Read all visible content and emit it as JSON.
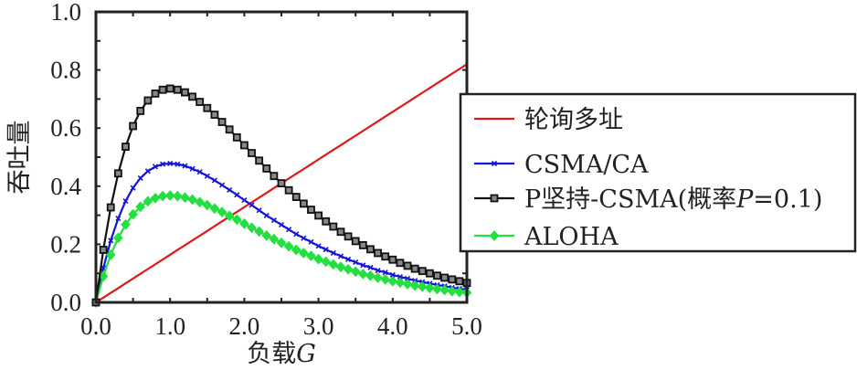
{
  "chart_data": {
    "type": "line",
    "title": "",
    "xlabel": "负载G",
    "xlabel_parts": {
      "text": "负载",
      "italic": "G"
    },
    "ylabel": "吞吐量",
    "xlim": [
      0,
      5
    ],
    "ylim": [
      0,
      1.0
    ],
    "x_ticks": [
      0,
      1,
      2,
      3,
      4,
      5
    ],
    "x_tick_labels": [
      "0.0",
      "1.0",
      "2.0",
      "3.0",
      "4.0",
      "5.0"
    ],
    "y_ticks": [
      0,
      0.2,
      0.4,
      0.6,
      0.8,
      1.0
    ],
    "y_tick_labels": [
      "0.0",
      "0.2",
      "0.4",
      "0.6",
      "0.8",
      "1.0"
    ],
    "x_minor_ticks": [
      0.5,
      1.5,
      2.5,
      3.5,
      4.5
    ],
    "y_minor_ticks": [
      0.1,
      0.3,
      0.5,
      0.7,
      0.9
    ],
    "grid": false,
    "legend_position": "right",
    "x": [
      0,
      0.1,
      0.2,
      0.3,
      0.4,
      0.5,
      0.6,
      0.7,
      0.8,
      0.9,
      1.0,
      1.1,
      1.2,
      1.3,
      1.4,
      1.5,
      1.6,
      1.7,
      1.8,
      1.9,
      2.0,
      2.1,
      2.2,
      2.3,
      2.4,
      2.5,
      2.6,
      2.7,
      2.8,
      2.9,
      3.0,
      3.1,
      3.2,
      3.3,
      3.4,
      3.5,
      3.6,
      3.7,
      3.8,
      3.9,
      4.0,
      4.1,
      4.2,
      4.3,
      4.4,
      4.5,
      4.6,
      4.7,
      4.8,
      4.9,
      5.0
    ],
    "series": [
      {
        "name": "轮询多址",
        "label_parts": {
          "text": "轮询多址"
        },
        "color": "#e01818",
        "marker": "none",
        "values": [
          0,
          0.0164,
          0.0328,
          0.0492,
          0.0656,
          0.082,
          0.0984,
          0.1148,
          0.1312,
          0.1476,
          0.164,
          0.1804,
          0.1968,
          0.2132,
          0.2296,
          0.246,
          0.2624,
          0.2788,
          0.2952,
          0.3116,
          0.328,
          0.3444,
          0.3608,
          0.3772,
          0.3936,
          0.41,
          0.4264,
          0.4428,
          0.4592,
          0.4756,
          0.492,
          0.5084,
          0.5248,
          0.5412,
          0.5576,
          0.574,
          0.5904,
          0.6068,
          0.6232,
          0.6396,
          0.656,
          0.6724,
          0.6888,
          0.7052,
          0.7216,
          0.738,
          0.7544,
          0.7708,
          0.7872,
          0.8036,
          0.82
        ]
      },
      {
        "name": "CSMA/CA",
        "label_parts": {
          "text": "CSMA/CA"
        },
        "color": "#1414d8",
        "marker": "x",
        "values": [
          0,
          0.118,
          0.213,
          0.289,
          0.349,
          0.394,
          0.428,
          0.452,
          0.467,
          0.476,
          0.478,
          0.476,
          0.47,
          0.46,
          0.449,
          0.435,
          0.42,
          0.404,
          0.387,
          0.37,
          0.352,
          0.335,
          0.317,
          0.299,
          0.283,
          0.267,
          0.251,
          0.235,
          0.221,
          0.208,
          0.194,
          0.182,
          0.17,
          0.159,
          0.148,
          0.138,
          0.128,
          0.12,
          0.11,
          0.103,
          0.095,
          0.088,
          0.082,
          0.075,
          0.07,
          0.065,
          0.06,
          0.056,
          0.051,
          0.047,
          0.044
        ]
      },
      {
        "name": "P坚持-CSMA(概率P=0.1)",
        "label_parts": {
          "text": "P坚持-CSMA(概率",
          "italic": "P",
          "suffix": "=0.1)"
        },
        "color": "#111111",
        "marker": "square",
        "values": [
          0,
          0.181,
          0.327,
          0.444,
          0.536,
          0.607,
          0.659,
          0.695,
          0.719,
          0.732,
          0.736,
          0.732,
          0.723,
          0.708,
          0.69,
          0.669,
          0.646,
          0.621,
          0.595,
          0.568,
          0.541,
          0.514,
          0.488,
          0.461,
          0.435,
          0.41,
          0.386,
          0.363,
          0.34,
          0.319,
          0.299,
          0.279,
          0.261,
          0.243,
          0.227,
          0.211,
          0.197,
          0.183,
          0.17,
          0.158,
          0.147,
          0.136,
          0.126,
          0.116,
          0.108,
          0.1,
          0.092,
          0.085,
          0.079,
          0.073,
          0.067
        ]
      },
      {
        "name": "ALOHA",
        "label_parts": {
          "text": "ALOHA"
        },
        "color": "#22e040",
        "marker": "diamond",
        "values": [
          0,
          0.09,
          0.164,
          0.222,
          0.268,
          0.303,
          0.329,
          0.348,
          0.359,
          0.366,
          0.368,
          0.366,
          0.361,
          0.354,
          0.345,
          0.335,
          0.323,
          0.311,
          0.298,
          0.285,
          0.271,
          0.257,
          0.244,
          0.23,
          0.218,
          0.205,
          0.193,
          0.181,
          0.17,
          0.16,
          0.149,
          0.14,
          0.131,
          0.122,
          0.114,
          0.106,
          0.098,
          0.092,
          0.085,
          0.079,
          0.073,
          0.068,
          0.063,
          0.058,
          0.054,
          0.05,
          0.046,
          0.043,
          0.039,
          0.036,
          0.034
        ]
      }
    ]
  }
}
